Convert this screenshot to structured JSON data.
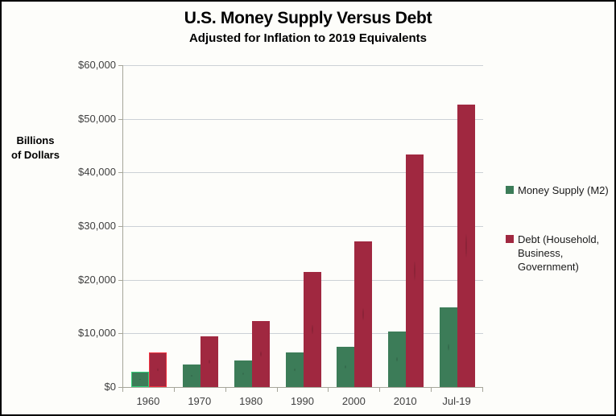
{
  "title": "U.S. Money Supply Versus Debt",
  "subtitle": "Adjusted for Inflation to 2019 Equivalents",
  "y_axis_title": {
    "line1": "Billions",
    "line2": "of Dollars"
  },
  "chart_data": {
    "type": "bar",
    "categories": [
      "1960",
      "1970",
      "1980",
      "1990",
      "2000",
      "2010",
      "Jul-19"
    ],
    "series": [
      {
        "name": "Money Supply (M2)",
        "color": "#3c7c58",
        "values": [
          2900,
          4200,
          5000,
          6500,
          7500,
          10400,
          14900
        ]
      },
      {
        "name": "Debt (Household, Business, Government)",
        "color": "#a02840",
        "values": [
          6400,
          9500,
          12300,
          21400,
          27100,
          43400,
          52600
        ]
      }
    ],
    "title": "U.S. Money Supply Versus Debt",
    "subtitle": "Adjusted for Inflation to 2019 Equivalents",
    "xlabel": "",
    "ylabel": "Billions of Dollars",
    "ylim": [
      0,
      60000
    ],
    "ytick_step": 10000,
    "ytick_labels": [
      "$0",
      "$10,000",
      "$20,000",
      "$30,000",
      "$40,000",
      "$50,000",
      "$60,000"
    ],
    "grid": true,
    "legend_position": "right",
    "legend": {
      "entries": [
        {
          "label_lines": [
            "Money Supply (M2)"
          ],
          "color": "#3c7c58",
          "top": 6
        },
        {
          "label_lines": [
            "Debt (Household,",
            "Business,",
            "Government)"
          ],
          "color": "#a02840",
          "top": 67
        }
      ]
    },
    "selection": {
      "category_index": 0,
      "outline_colors": [
        "#35cf7c",
        "#f0333f"
      ]
    }
  },
  "colors": {
    "background": "#fdfdfa",
    "frame_border": "#000000",
    "gridline": "#ccd1d6",
    "axis_line": "#a6a69a",
    "tick_text": "#3f3f3f"
  }
}
